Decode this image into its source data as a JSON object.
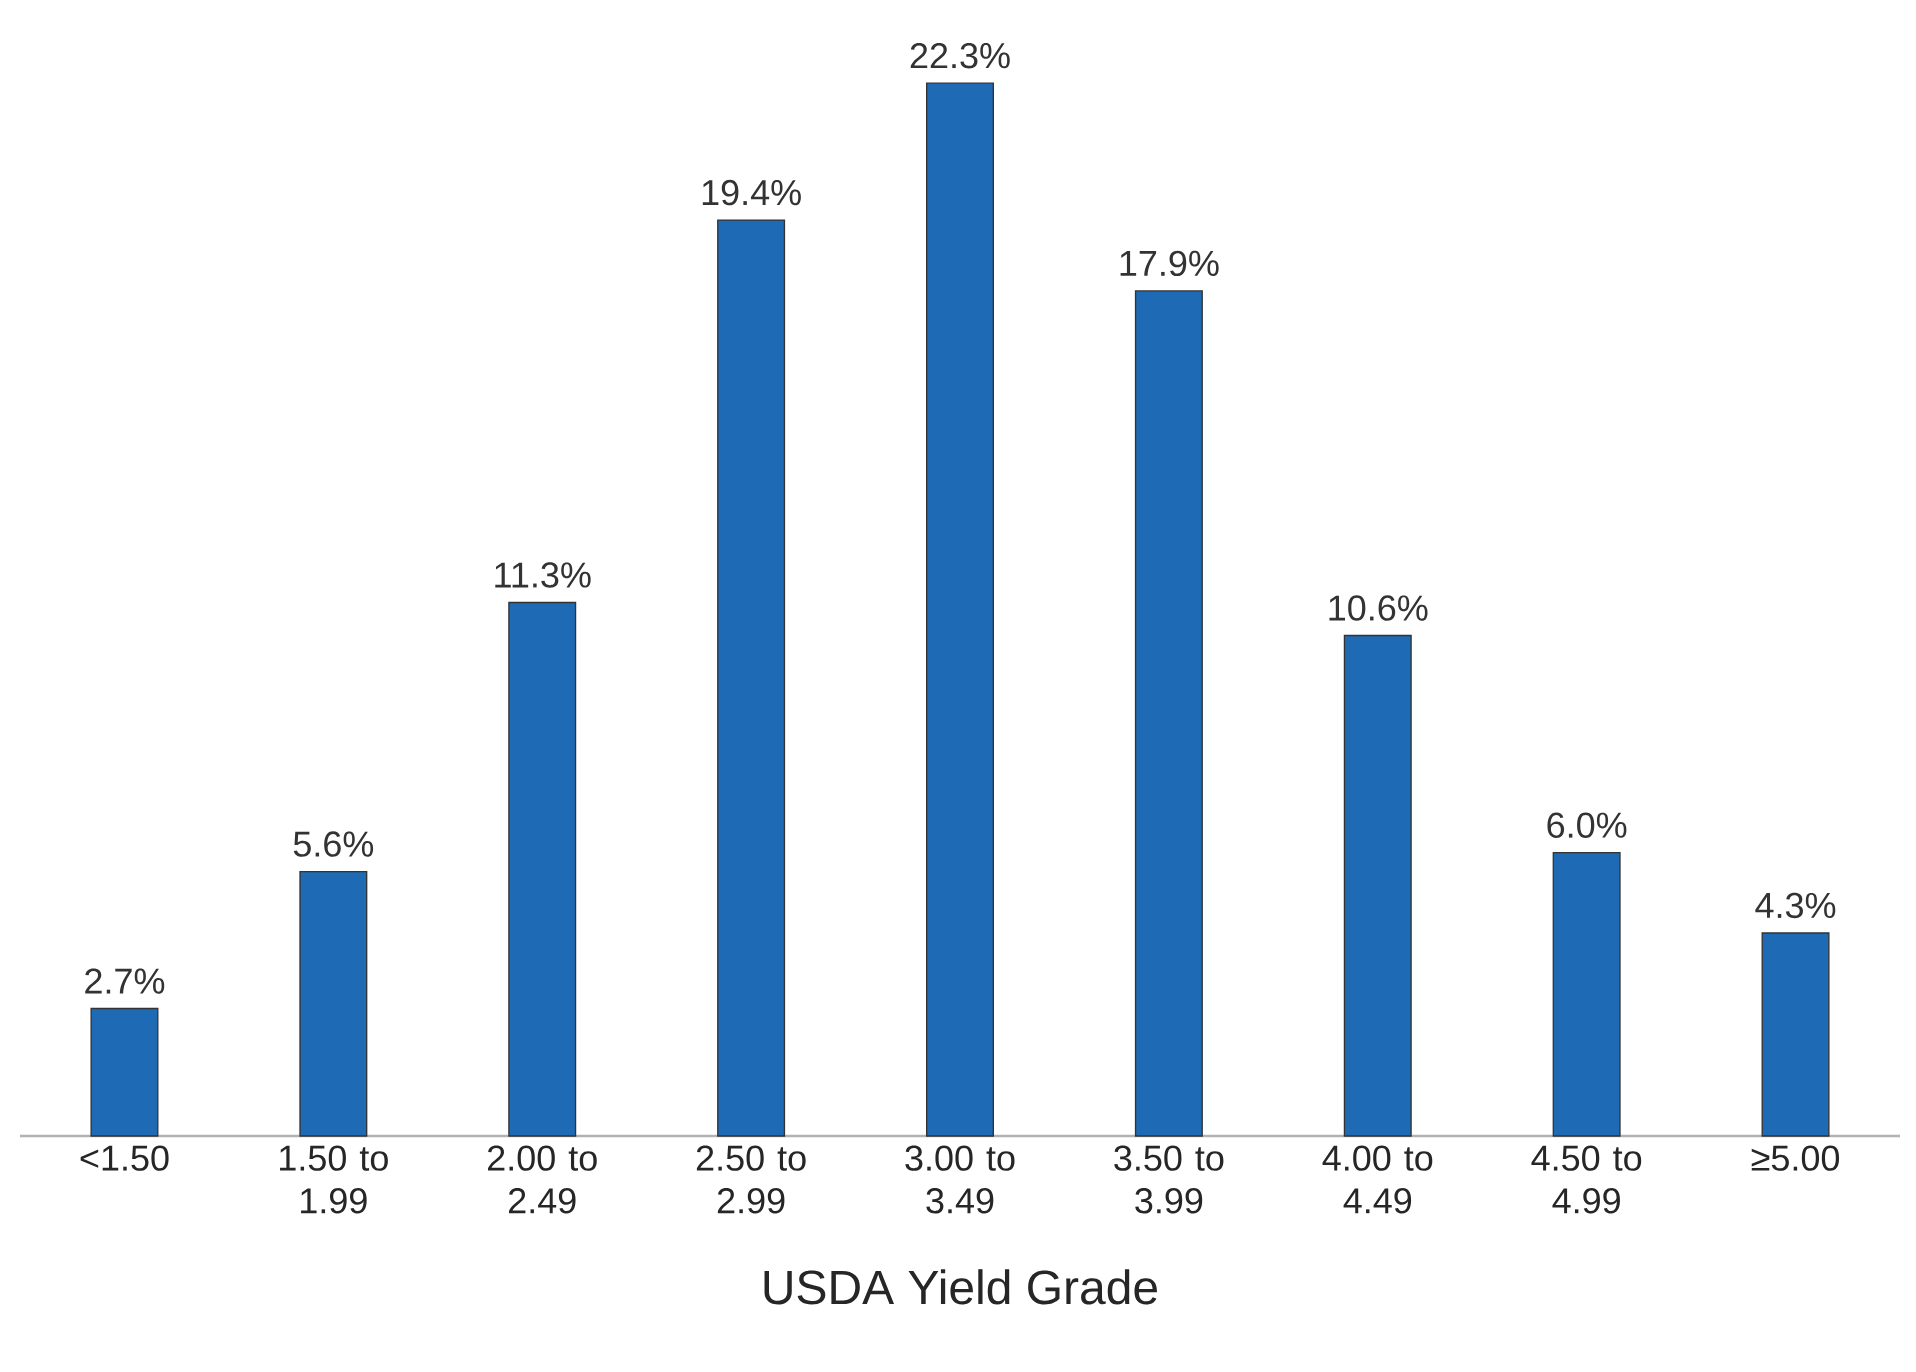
{
  "chart_data": {
    "type": "bar",
    "xlabel": "USDA Yield Grade",
    "categories": [
      "<1.50",
      "1.50 to 1.99",
      "2.00 to 2.49",
      "2.50 to 2.99",
      "3.00 to 3.49",
      "3.50 to 3.99",
      "4.00 to 4.49",
      "4.50 to 4.99",
      "≥5.00"
    ],
    "values": [
      2.7,
      5.6,
      11.3,
      19.4,
      22.3,
      17.9,
      10.6,
      6.0,
      4.3
    ],
    "value_labels": [
      "2.7%",
      "5.6%",
      "11.3%",
      "19.4%",
      "22.3%",
      "17.9%",
      "10.6%",
      "6.0%",
      "4.3%"
    ],
    "color": "#1f6ab4",
    "tick_labels": "x"
  }
}
